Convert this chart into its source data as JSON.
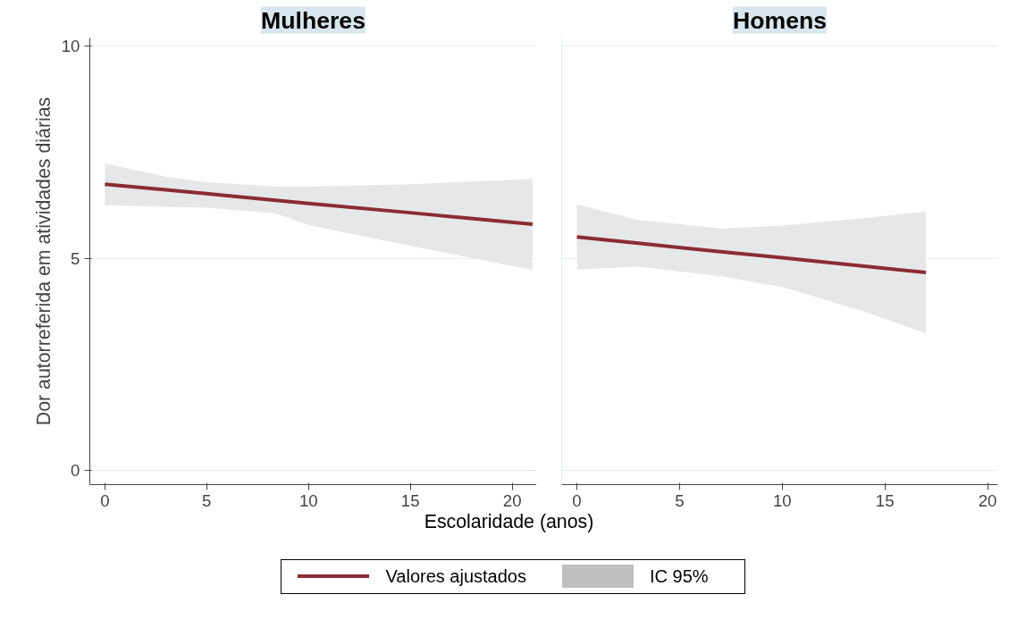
{
  "chart_data": [
    {
      "type": "line",
      "title": "Mulheres",
      "ylabel": "Dor autorreferida em atividades diárias",
      "xlabel": "Escolaridade (anos)",
      "xlim": [
        -0.74,
        21.2
      ],
      "ylim": [
        -0.33,
        10.2
      ],
      "xticks": [
        0,
        5,
        10,
        15,
        20
      ],
      "yticks": [
        0,
        5,
        10
      ],
      "grid": "y",
      "legend": "bottom",
      "annotations": [
        "IC 95%"
      ],
      "series": [
        {
          "name": "Valores ajustados",
          "color": "#8b2c35",
          "x": [
            0,
            3,
            5,
            8.4,
            10,
            15,
            21
          ],
          "values": [
            6.75,
            6.62,
            6.53,
            6.37,
            6.3,
            6.08,
            5.81
          ],
          "lower": [
            6.26,
            6.22,
            6.2,
            6.06,
            5.79,
            5.3,
            4.73
          ],
          "upper": [
            7.24,
            6.93,
            6.8,
            6.7,
            6.7,
            6.75,
            6.88
          ]
        }
      ]
    },
    {
      "type": "line",
      "title": "Homens",
      "xlim": [
        -0.74,
        20.5
      ],
      "ylim": [
        -0.33,
        10.2
      ],
      "xticks": [
        0,
        5,
        10,
        15,
        20
      ],
      "yticks": [
        0,
        5,
        10
      ],
      "grid": "y",
      "tick_labels": "x",
      "series": [
        {
          "color": "#8b2c35",
          "x": [
            0,
            3,
            7,
            10,
            14,
            17
          ],
          "values": [
            5.51,
            5.36,
            5.16,
            5.02,
            4.82,
            4.67
          ],
          "lower": [
            4.74,
            4.81,
            4.58,
            4.33,
            3.75,
            3.24
          ],
          "upper": [
            6.28,
            5.91,
            5.71,
            5.78,
            5.95,
            6.11
          ]
        }
      ]
    }
  ]
}
